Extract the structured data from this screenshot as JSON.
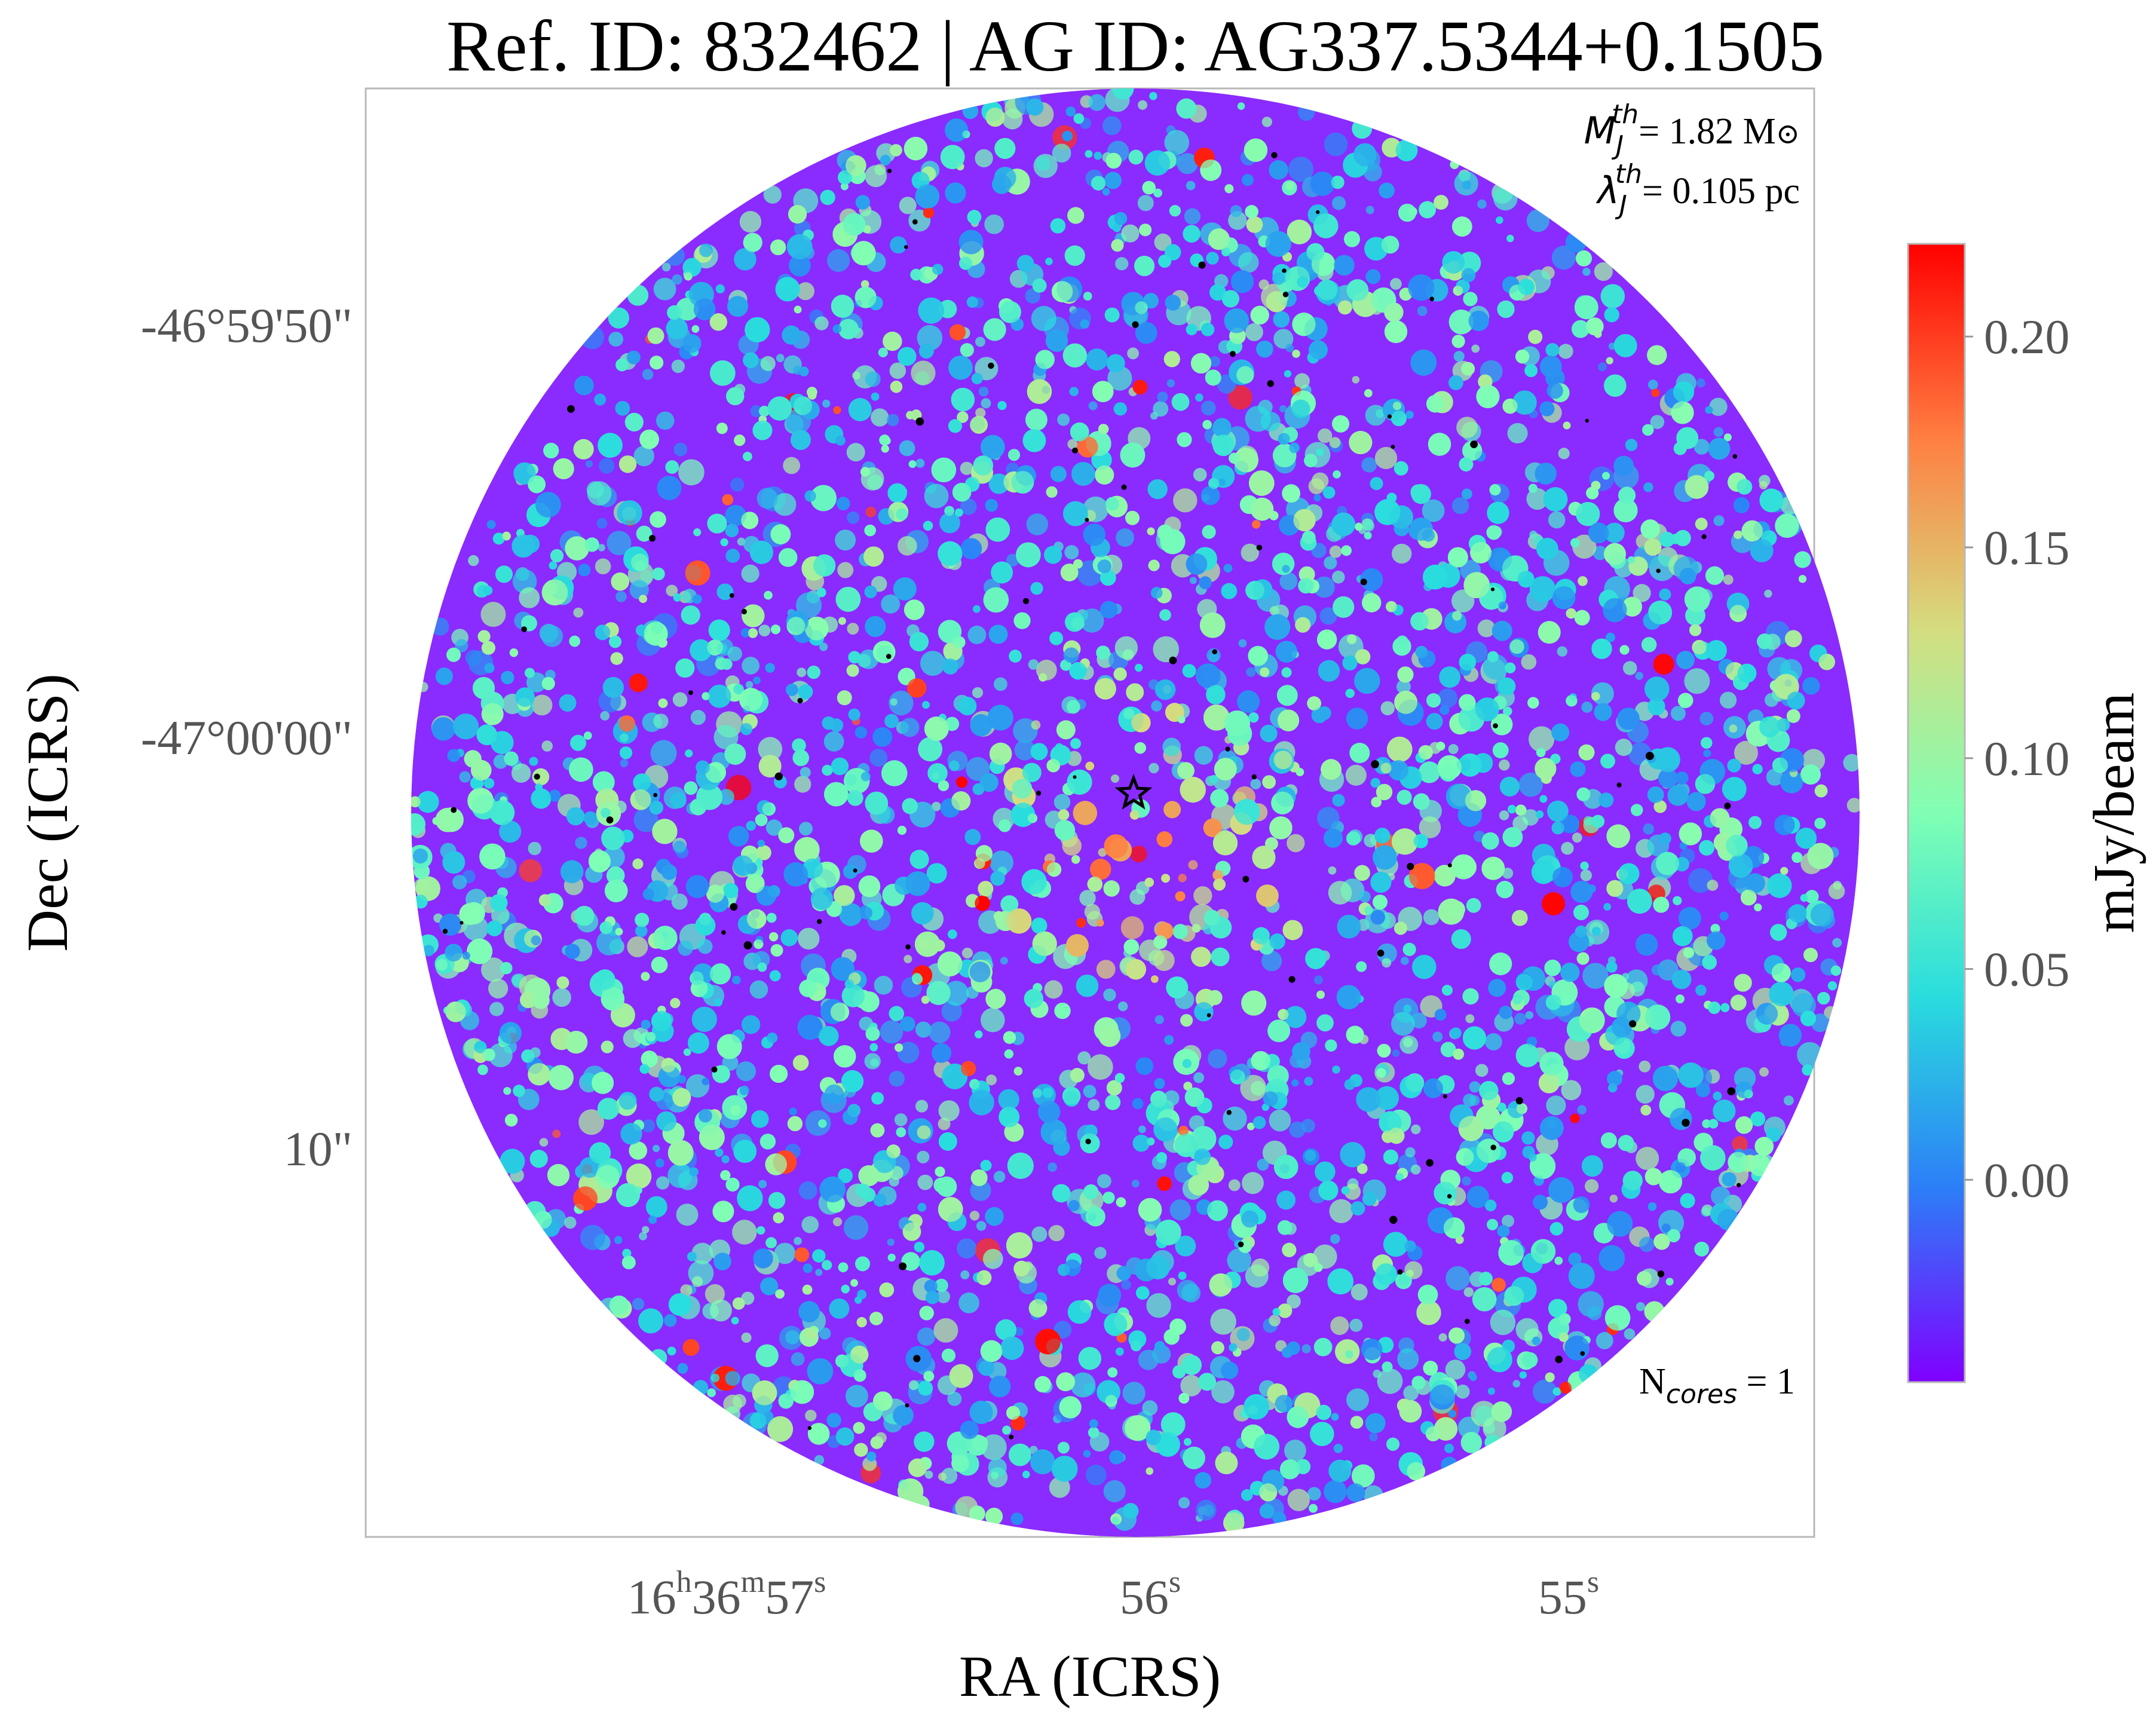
{
  "chart_data": {
    "type": "heatmap",
    "title": "Ref. ID: 832462 | AG ID: AG337.5344+0.1505",
    "xlabel": "RA (ICRS)",
    "ylabel": "Dec (ICRS)",
    "x_ticks": [
      {
        "base": "16",
        "h": "h",
        "mid": "36",
        "m": "m",
        "last": "57",
        "s": "s"
      },
      {
        "base": "56",
        "s": "s"
      },
      {
        "base": "55",
        "s": "s"
      }
    ],
    "y_ticks": [
      "-46°59'50\"",
      "-47°00'00\"",
      "10\""
    ],
    "colorbar": {
      "label": "mJy/beam",
      "ticks": [
        "0.20",
        "0.15",
        "0.10",
        "0.05",
        "0.00"
      ],
      "tick_values": [
        0.2,
        0.15,
        0.1,
        0.05,
        0.0
      ],
      "range": [
        -0.048,
        0.222
      ],
      "colormap": "rainbow",
      "colors": [
        "#8000ff",
        "#2c7ef7",
        "#2adddd",
        "#80ffb4",
        "#d4dd80",
        "#ff7e41",
        "#ff0000"
      ]
    },
    "annotations": {
      "mass_symbol": "M",
      "mass_sub": "J",
      "mass_sup": "th",
      "mass_text": "= 1.82 M",
      "mass_unit_sun": "⊙",
      "length_symbol": "λ",
      "length_sub": "J",
      "length_sup": "th",
      "length_text": "= 0.105 pc",
      "ncores_prefix": "N",
      "ncores_sub": "cores",
      "ncores_text": " = 1"
    },
    "markers": [
      {
        "type": "star",
        "ra_offset_arcsec": 0.0,
        "dec_offset_arcsec": 0.0
      }
    ],
    "grid": false
  }
}
